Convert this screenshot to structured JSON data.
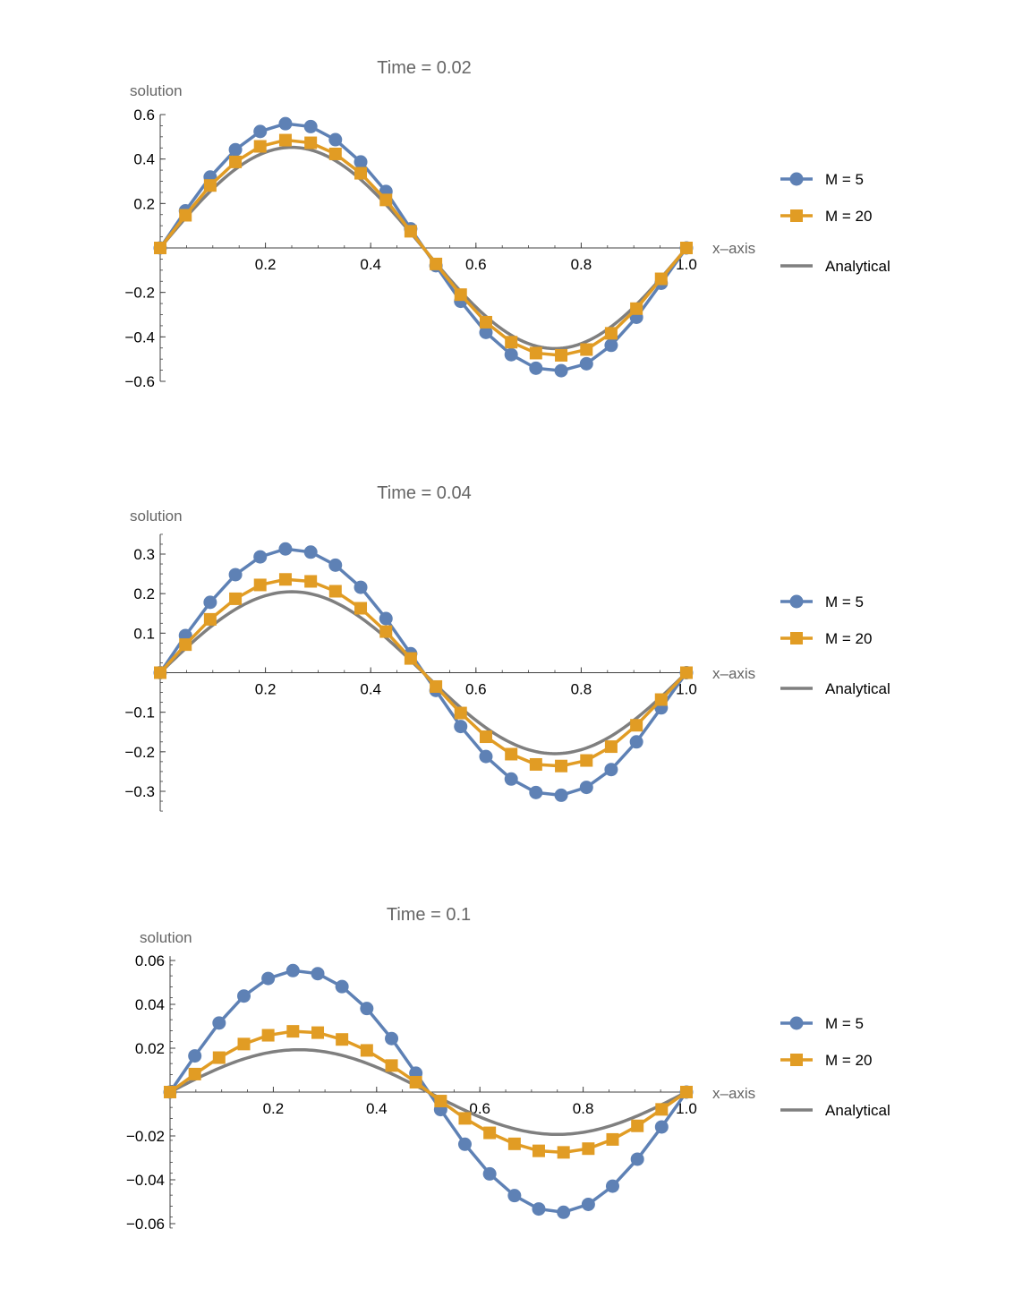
{
  "colors": {
    "m5": "#5e81b5",
    "m20": "#e19c24",
    "analytical": "#7f7f7f",
    "axis": "#404040",
    "label": "#666666"
  },
  "legend_labels": {
    "m5": "M = 5",
    "m20": "M = 20",
    "analytical": "Analytical"
  },
  "chart_data": [
    {
      "type": "line",
      "title": "Time = 0.02",
      "xlabel": "x–axis",
      "ylabel": "solution",
      "xlim": [
        0,
        1
      ],
      "ylim": [
        -0.6,
        0.6
      ],
      "xticks": [
        0.2,
        0.4,
        0.6,
        0.8,
        1.0
      ],
      "xtick_labels": [
        "0.2",
        "0.4",
        "0.6",
        "0.8",
        "1.0"
      ],
      "yticks": [
        -0.6,
        -0.4,
        -0.2,
        0.2,
        0.4,
        0.6
      ],
      "ytick_labels": [
        "−0.6",
        "−0.4",
        "−0.2",
        "0.2",
        "0.4",
        "0.6"
      ],
      "legend": "right",
      "series": [
        {
          "name": "M = 5",
          "marker": "circle",
          "x": [
            0,
            0.048,
            0.095,
            0.143,
            0.19,
            0.238,
            0.286,
            0.333,
            0.381,
            0.429,
            0.476,
            0.524,
            0.571,
            0.619,
            0.667,
            0.714,
            0.762,
            0.81,
            0.857,
            0.905,
            0.952,
            1
          ],
          "y": [
            0,
            0.167,
            0.319,
            0.442,
            0.524,
            0.559,
            0.546,
            0.487,
            0.387,
            0.254,
            0.086,
            -0.08,
            -0.24,
            -0.38,
            -0.48,
            -0.541,
            -0.552,
            -0.521,
            -0.438,
            -0.312,
            -0.159,
            0
          ]
        },
        {
          "name": "M = 20",
          "marker": "square",
          "x": [
            0,
            0.048,
            0.095,
            0.143,
            0.19,
            0.238,
            0.286,
            0.333,
            0.381,
            0.429,
            0.476,
            0.524,
            0.571,
            0.619,
            0.667,
            0.714,
            0.762,
            0.81,
            0.857,
            0.905,
            0.952,
            1
          ],
          "y": [
            0,
            0.147,
            0.281,
            0.387,
            0.457,
            0.485,
            0.473,
            0.423,
            0.336,
            0.216,
            0.075,
            -0.072,
            -0.21,
            -0.334,
            -0.424,
            -0.473,
            -0.483,
            -0.457,
            -0.384,
            -0.273,
            -0.139,
            0
          ]
        },
        {
          "name": "Analytical",
          "marker": "none",
          "function": "0.4526*sin(2*pi*x)"
        }
      ]
    },
    {
      "type": "line",
      "title": "Time = 0.04",
      "xlabel": "x–axis",
      "ylabel": "solution",
      "xlim": [
        0,
        1
      ],
      "ylim": [
        -0.35,
        0.35
      ],
      "xticks": [
        0.2,
        0.4,
        0.6,
        0.8,
        1.0
      ],
      "xtick_labels": [
        "0.2",
        "0.4",
        "0.6",
        "0.8",
        "1.0"
      ],
      "yticks": [
        -0.3,
        -0.2,
        -0.1,
        0.1,
        0.2,
        0.3
      ],
      "ytick_labels": [
        "−0.3",
        "−0.2",
        "−0.1",
        "0.1",
        "0.2",
        "0.3"
      ],
      "legend": "right",
      "series": [
        {
          "name": "M = 5",
          "marker": "circle",
          "x": [
            0,
            0.048,
            0.095,
            0.143,
            0.19,
            0.238,
            0.286,
            0.333,
            0.381,
            0.429,
            0.476,
            0.524,
            0.571,
            0.619,
            0.667,
            0.714,
            0.762,
            0.81,
            0.857,
            0.905,
            0.952,
            1
          ],
          "y": [
            0,
            0.094,
            0.178,
            0.248,
            0.293,
            0.313,
            0.305,
            0.272,
            0.216,
            0.137,
            0.048,
            -0.045,
            -0.136,
            -0.212,
            -0.269,
            -0.303,
            -0.31,
            -0.29,
            -0.245,
            -0.175,
            -0.089,
            0
          ]
        },
        {
          "name": "M = 20",
          "marker": "square",
          "x": [
            0,
            0.048,
            0.095,
            0.143,
            0.19,
            0.238,
            0.286,
            0.333,
            0.381,
            0.429,
            0.476,
            0.524,
            0.571,
            0.619,
            0.667,
            0.714,
            0.762,
            0.81,
            0.857,
            0.905,
            0.952,
            1
          ],
          "y": [
            0,
            0.071,
            0.135,
            0.187,
            0.222,
            0.236,
            0.231,
            0.206,
            0.163,
            0.104,
            0.036,
            -0.035,
            -0.102,
            -0.162,
            -0.206,
            -0.232,
            -0.236,
            -0.222,
            -0.187,
            -0.133,
            -0.068,
            0
          ]
        },
        {
          "name": "Analytical",
          "marker": "none",
          "function": "0.2048*sin(2*pi*x)"
        }
      ]
    },
    {
      "type": "line",
      "title": "Time = 0.1",
      "xlabel": "x–axis",
      "ylabel": "solution",
      "xlim": [
        0,
        1
      ],
      "ylim": [
        -0.062,
        0.062
      ],
      "xticks": [
        0.2,
        0.4,
        0.6,
        0.8,
        1.0
      ],
      "xtick_labels": [
        "0.2",
        "0.4",
        "0.6",
        "0.8",
        "1.0"
      ],
      "yticks": [
        -0.06,
        -0.04,
        -0.02,
        0.02,
        0.04,
        0.06
      ],
      "ytick_labels": [
        "−0.06",
        "−0.04",
        "−0.02",
        "0.02",
        "0.04",
        "0.06"
      ],
      "legend": "right",
      "series": [
        {
          "name": "M = 5",
          "marker": "circle",
          "x": [
            0,
            0.048,
            0.095,
            0.143,
            0.19,
            0.238,
            0.286,
            0.333,
            0.381,
            0.429,
            0.476,
            0.524,
            0.571,
            0.619,
            0.667,
            0.714,
            0.762,
            0.81,
            0.857,
            0.905,
            0.952,
            1
          ],
          "y": [
            0,
            0.0165,
            0.0315,
            0.0438,
            0.0518,
            0.0554,
            0.054,
            0.0481,
            0.0381,
            0.0244,
            0.0086,
            -0.008,
            -0.0238,
            -0.0373,
            -0.0472,
            -0.0533,
            -0.0548,
            -0.0512,
            -0.0429,
            -0.0306,
            -0.0159,
            0
          ]
        },
        {
          "name": "M = 20",
          "marker": "square",
          "x": [
            0,
            0.048,
            0.095,
            0.143,
            0.19,
            0.238,
            0.286,
            0.333,
            0.381,
            0.429,
            0.476,
            0.524,
            0.571,
            0.619,
            0.667,
            0.714,
            0.762,
            0.81,
            0.857,
            0.905,
            0.952,
            1
          ],
          "y": [
            0,
            0.0082,
            0.0157,
            0.0219,
            0.0259,
            0.0277,
            0.0271,
            0.024,
            0.019,
            0.0121,
            0.0045,
            -0.0041,
            -0.012,
            -0.0186,
            -0.0236,
            -0.0268,
            -0.0275,
            -0.0258,
            -0.0216,
            -0.0154,
            -0.0079,
            0
          ]
        },
        {
          "name": "Analytical",
          "marker": "none",
          "function": "0.0193*sin(2*pi*x)"
        }
      ]
    }
  ]
}
